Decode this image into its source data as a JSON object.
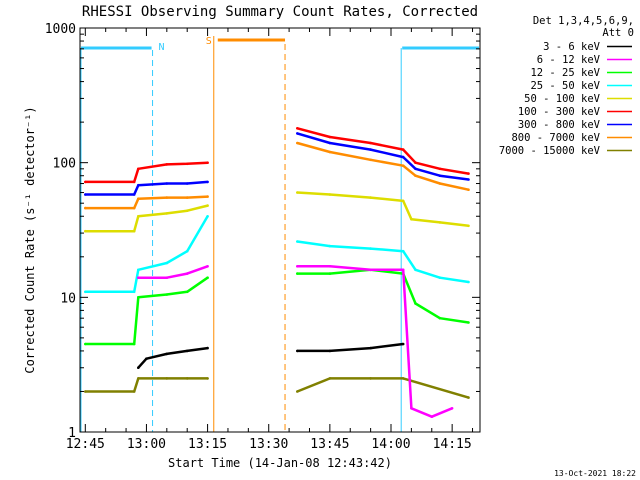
{
  "chart_data": {
    "type": "line",
    "title": "RHESSI Observing Summary Count Rates, Corrected",
    "xlabel": "Start Time (14-Jan-08 12:43:42)",
    "ylabel": "Corrected Count Rate (s⁻¹ detector⁻¹)",
    "y_scale": "log",
    "ylim": [
      1,
      1000
    ],
    "xlim": [
      "12:43:42",
      "14:21:50"
    ],
    "x_ticks": [
      "12:45",
      "13:00",
      "13:15",
      "13:30",
      "13:45",
      "14:00",
      "14:15"
    ],
    "y_ticks": [
      "1",
      "10",
      "100",
      "1000"
    ],
    "legend_header": [
      "Det 1,3,4,5,6,9,",
      "Att 0"
    ],
    "legend_position": "right",
    "footer": "13-Oct-2021 18:22",
    "grid": false,
    "segments": [
      {
        "start": "12:43:42",
        "end": "13:16:50"
      },
      {
        "start": "13:36:30",
        "end": "14:21:50"
      }
    ],
    "series": [
      {
        "name": "3 - 6 keV",
        "color": "#000000",
        "points": [
          [
            "12:58",
            3
          ],
          [
            "13:00",
            3.5
          ],
          [
            "13:05",
            3.8
          ],
          [
            "13:10",
            4
          ],
          [
            "13:15",
            4.2
          ],
          [
            "13:37",
            4
          ],
          [
            "13:45",
            4
          ],
          [
            "13:55",
            4.2
          ],
          [
            "14:03",
            4.5
          ]
        ]
      },
      {
        "name": "6 - 12 keV",
        "color": "#ff00ff",
        "points": [
          [
            "12:58",
            14
          ],
          [
            "13:05",
            14
          ],
          [
            "13:10",
            15
          ],
          [
            "13:15",
            17
          ],
          [
            "13:37",
            17
          ],
          [
            "13:45",
            17
          ],
          [
            "13:55",
            16
          ],
          [
            "14:03",
            16
          ],
          [
            "14:05",
            1.5
          ],
          [
            "14:10",
            1.3
          ],
          [
            "14:15",
            1.5
          ]
        ]
      },
      {
        "name": "12 - 25 keV",
        "color": "#00ff00",
        "points": [
          [
            "12:45",
            4.5
          ],
          [
            "12:57",
            4.5
          ],
          [
            "12:58",
            10
          ],
          [
            "13:05",
            10.5
          ],
          [
            "13:10",
            11
          ],
          [
            "13:15",
            14
          ],
          [
            "13:37",
            15
          ],
          [
            "13:45",
            15
          ],
          [
            "13:55",
            16
          ],
          [
            "14:03",
            15
          ],
          [
            "14:06",
            9
          ],
          [
            "14:12",
            7
          ],
          [
            "14:19",
            6.5
          ]
        ]
      },
      {
        "name": "25 - 50 keV",
        "color": "#00ffff",
        "points": [
          [
            "12:45",
            11
          ],
          [
            "12:57",
            11
          ],
          [
            "12:58",
            16
          ],
          [
            "13:05",
            18
          ],
          [
            "13:10",
            22
          ],
          [
            "13:15",
            40
          ],
          [
            "13:37",
            26
          ],
          [
            "13:45",
            24
          ],
          [
            "13:55",
            23
          ],
          [
            "14:03",
            22
          ],
          [
            "14:06",
            16
          ],
          [
            "14:12",
            14
          ],
          [
            "14:19",
            13
          ]
        ]
      },
      {
        "name": "50 - 100 keV",
        "color": "#dddd00",
        "points": [
          [
            "12:45",
            31
          ],
          [
            "12:57",
            31
          ],
          [
            "12:58",
            40
          ],
          [
            "13:05",
            42
          ],
          [
            "13:10",
            44
          ],
          [
            "13:15",
            48
          ],
          [
            "13:37",
            60
          ],
          [
            "13:45",
            58
          ],
          [
            "13:55",
            55
          ],
          [
            "14:03",
            52
          ],
          [
            "14:05",
            38
          ],
          [
            "14:12",
            36
          ],
          [
            "14:19",
            34
          ]
        ]
      },
      {
        "name": "100 - 300 keV",
        "color": "#ff0000",
        "points": [
          [
            "12:45",
            72
          ],
          [
            "12:57",
            72
          ],
          [
            "12:58",
            90
          ],
          [
            "13:05",
            97
          ],
          [
            "13:10",
            98
          ],
          [
            "13:15",
            100
          ],
          [
            "13:37",
            180
          ],
          [
            "13:45",
            155
          ],
          [
            "13:55",
            140
          ],
          [
            "14:03",
            125
          ],
          [
            "14:06",
            100
          ],
          [
            "14:12",
            90
          ],
          [
            "14:19",
            83
          ]
        ]
      },
      {
        "name": "300 - 800 keV",
        "color": "#0000ff",
        "points": [
          [
            "12:45",
            58
          ],
          [
            "12:57",
            58
          ],
          [
            "12:58",
            68
          ],
          [
            "13:05",
            70
          ],
          [
            "13:10",
            70
          ],
          [
            "13:15",
            72
          ],
          [
            "13:37",
            165
          ],
          [
            "13:45",
            140
          ],
          [
            "13:55",
            125
          ],
          [
            "14:03",
            110
          ],
          [
            "14:06",
            90
          ],
          [
            "14:12",
            80
          ],
          [
            "14:19",
            75
          ]
        ]
      },
      {
        "name": "800 - 7000 keV",
        "color": "#ff8c00",
        "points": [
          [
            "12:45",
            46
          ],
          [
            "12:57",
            46
          ],
          [
            "12:58",
            54
          ],
          [
            "13:05",
            55
          ],
          [
            "13:10",
            55
          ],
          [
            "13:15",
            56
          ],
          [
            "13:37",
            140
          ],
          [
            "13:45",
            120
          ],
          [
            "13:55",
            105
          ],
          [
            "14:03",
            95
          ],
          [
            "14:06",
            80
          ],
          [
            "14:12",
            70
          ],
          [
            "14:19",
            63
          ]
        ]
      },
      {
        "name": "7000 - 15000 keV",
        "color": "#808000",
        "points": [
          [
            "12:45",
            2
          ],
          [
            "12:57",
            2
          ],
          [
            "12:58",
            2.5
          ],
          [
            "13:05",
            2.5
          ],
          [
            "13:10",
            2.5
          ],
          [
            "13:15",
            2.5
          ],
          [
            "13:37",
            2
          ],
          [
            "13:45",
            2.5
          ],
          [
            "13:55",
            2.5
          ],
          [
            "14:03",
            2.5
          ],
          [
            "14:19",
            1.8
          ]
        ]
      }
    ],
    "night_intervals": [
      {
        "label": "N",
        "start": "12:43:42",
        "end": "13:01:30",
        "color": "#33ccff"
      },
      {
        "label": "",
        "start": "14:02:30",
        "end": "14:21:50",
        "color": "#33ccff"
      }
    ],
    "saa_intervals": [
      {
        "label": "S",
        "start": "13:17:30",
        "end": "13:34:00",
        "color": "#ff8c00"
      }
    ]
  }
}
